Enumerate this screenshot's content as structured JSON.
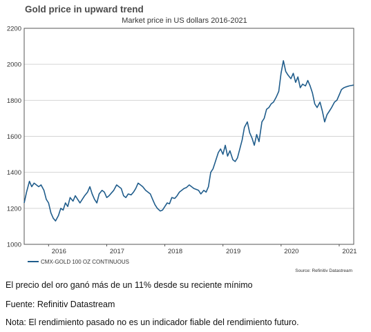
{
  "chart_data": {
    "type": "line",
    "title": "Gold price in upward trend",
    "subtitle": "Market price in US dollars 2016-2021",
    "ylim": [
      1000,
      2200
    ],
    "yticks": [
      1000,
      1200,
      1400,
      1600,
      1800,
      2000,
      2200
    ],
    "xlim": [
      2015.58,
      2021.25
    ],
    "xticks": [
      {
        "label": "2016",
        "x": 2016.0
      },
      {
        "label": "2017",
        "x": 2017.0
      },
      {
        "label": "2018",
        "x": 2018.0
      },
      {
        "label": "2019",
        "x": 2019.0
      },
      {
        "label": "2020",
        "x": 2020.0
      },
      {
        "label": "2021",
        "x": 2021.0
      }
    ],
    "grid": true,
    "legend_placement": "bottom-left",
    "color": "#1f5c8b",
    "series": [
      {
        "name": "CMX-GOLD 100 OZ CONTINUOUS",
        "x": [
          2015.58,
          2015.62,
          2015.67,
          2015.71,
          2015.75,
          2015.79,
          2015.83,
          2015.87,
          2015.92,
          2015.96,
          2016.0,
          2016.04,
          2016.08,
          2016.12,
          2016.17,
          2016.21,
          2016.25,
          2016.29,
          2016.33,
          2016.37,
          2016.42,
          2016.46,
          2016.5,
          2016.54,
          2016.58,
          2016.62,
          2016.67,
          2016.71,
          2016.75,
          2016.79,
          2016.83,
          2016.87,
          2016.92,
          2016.96,
          2017.0,
          2017.04,
          2017.08,
          2017.12,
          2017.17,
          2017.21,
          2017.25,
          2017.29,
          2017.33,
          2017.37,
          2017.42,
          2017.46,
          2017.5,
          2017.54,
          2017.58,
          2017.62,
          2017.67,
          2017.71,
          2017.75,
          2017.79,
          2017.83,
          2017.87,
          2017.92,
          2017.96,
          2018.0,
          2018.04,
          2018.08,
          2018.12,
          2018.17,
          2018.21,
          2018.25,
          2018.29,
          2018.33,
          2018.37,
          2018.42,
          2018.46,
          2018.5,
          2018.54,
          2018.58,
          2018.62,
          2018.67,
          2018.71,
          2018.75,
          2018.79,
          2018.83,
          2018.87,
          2018.92,
          2018.96,
          2019.0,
          2019.04,
          2019.08,
          2019.12,
          2019.17,
          2019.21,
          2019.25,
          2019.29,
          2019.33,
          2019.37,
          2019.42,
          2019.46,
          2019.5,
          2019.54,
          2019.58,
          2019.62,
          2019.67,
          2019.71,
          2019.75,
          2019.79,
          2019.83,
          2019.87,
          2019.92,
          2019.96,
          2020.0,
          2020.04,
          2020.08,
          2020.12,
          2020.17,
          2020.21,
          2020.25,
          2020.29,
          2020.33,
          2020.37,
          2020.42,
          2020.46,
          2020.5,
          2020.54,
          2020.58,
          2020.62,
          2020.67,
          2020.71,
          2020.75,
          2020.79,
          2020.83,
          2020.87,
          2020.92,
          2020.96,
          2021.0,
          2021.04,
          2021.08,
          2021.12,
          2021.17,
          2021.21,
          2021.25
        ],
        "y": [
          1230,
          1290,
          1350,
          1320,
          1340,
          1330,
          1320,
          1330,
          1300,
          1250,
          1230,
          1175,
          1145,
          1130,
          1160,
          1200,
          1190,
          1230,
          1210,
          1260,
          1240,
          1270,
          1250,
          1230,
          1250,
          1270,
          1290,
          1320,
          1280,
          1250,
          1230,
          1280,
          1300,
          1290,
          1260,
          1270,
          1285,
          1300,
          1330,
          1320,
          1310,
          1270,
          1260,
          1280,
          1275,
          1290,
          1310,
          1340,
          1330,
          1320,
          1300,
          1290,
          1280,
          1250,
          1220,
          1200,
          1185,
          1190,
          1210,
          1230,
          1225,
          1260,
          1255,
          1270,
          1290,
          1300,
          1310,
          1315,
          1330,
          1320,
          1310,
          1305,
          1300,
          1280,
          1300,
          1290,
          1320,
          1400,
          1420,
          1460,
          1510,
          1530,
          1500,
          1550,
          1490,
          1520,
          1470,
          1460,
          1480,
          1530,
          1580,
          1650,
          1680,
          1620,
          1590,
          1550,
          1610,
          1570,
          1680,
          1700,
          1750,
          1760,
          1780,
          1790,
          1820,
          1850,
          1950,
          2020,
          1960,
          1940,
          1920,
          1950,
          1900,
          1930,
          1870,
          1890,
          1880,
          1910,
          1880,
          1840,
          1780,
          1760,
          1790,
          1740,
          1680,
          1720,
          1740,
          1760,
          1790,
          1800,
          1830,
          1860,
          1870,
          1875,
          1880,
          1882,
          1885
        ]
      }
    ],
    "source": "Source: Refinitiv Datastream"
  },
  "footnotes": {
    "line1": "El precio del oro ganó más de un 11% desde su reciente mínimo",
    "line2": "Fuente: Refinitiv Datastream",
    "line3": "Nota: El rendimiento pasado no es un indicador fiable del rendimiento futuro."
  }
}
